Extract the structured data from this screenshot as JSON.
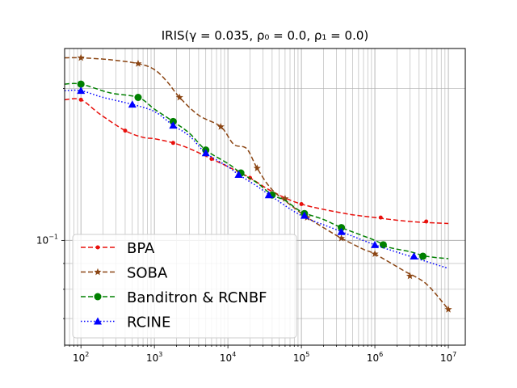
{
  "chart_data": {
    "type": "line",
    "title": "IRIS(γ = 0.035, ρ₀ = 0.0, ρ₁ = 0.0)",
    "xlabel": "",
    "ylabel": "",
    "xscale": "log",
    "yscale": "log",
    "xlim": [
      60,
      17000000
    ],
    "ylim": [
      0.062,
      0.24
    ],
    "grid": true,
    "legend_position": "lower-left",
    "x_ticks": [
      {
        "base": "10",
        "exp": "2",
        "value": 100
      },
      {
        "base": "10",
        "exp": "3",
        "value": 1000
      },
      {
        "base": "10",
        "exp": "4",
        "value": 10000
      },
      {
        "base": "10",
        "exp": "5",
        "value": 100000
      },
      {
        "base": "10",
        "exp": "6",
        "value": 1000000
      },
      {
        "base": "10",
        "exp": "7",
        "value": 10000000
      }
    ],
    "y_ticks": [
      {
        "base": "10",
        "exp": "−1",
        "value": 0.1
      }
    ],
    "series": [
      {
        "name": "BPA",
        "color": "#e8100c",
        "dash": "dashed",
        "marker": "dot",
        "x": [
          60,
          100,
          180,
          400,
          700,
          1000,
          1800,
          3000,
          6000,
          10000,
          20000,
          40000,
          100000,
          400000,
          1000000,
          3000000,
          10000000
        ],
        "y": [
          0.19,
          0.19,
          0.178,
          0.165,
          0.16,
          0.159,
          0.156,
          0.152,
          0.145,
          0.14,
          0.133,
          0.125,
          0.118,
          0.113,
          0.111,
          0.109,
          0.108
        ],
        "markers_x": [
          100,
          400,
          1800,
          6000,
          20000,
          100000,
          1200000,
          5000000
        ],
        "markers_y": [
          0.19,
          0.165,
          0.156,
          0.145,
          0.133,
          0.118,
          0.111,
          0.109
        ]
      },
      {
        "name": "SOBA",
        "color": "#8b4513",
        "dash": "dashed",
        "marker": "star",
        "x": [
          60,
          100,
          250,
          600,
          1000,
          1500,
          2200,
          4000,
          8000,
          12000,
          18000,
          25000,
          40000,
          80000,
          120000,
          200000,
          350000,
          700000,
          1000000,
          2500000,
          5000000,
          10000000
        ],
        "y": [
          0.23,
          0.23,
          0.228,
          0.224,
          0.218,
          0.206,
          0.192,
          0.177,
          0.168,
          0.155,
          0.152,
          0.139,
          0.126,
          0.116,
          0.111,
          0.106,
          0.101,
          0.096,
          0.094,
          0.087,
          0.082,
          0.073
        ],
        "markers_x": [
          100,
          600,
          2200,
          8000,
          25000,
          60000,
          120000,
          350000,
          1000000,
          3000000,
          10000000
        ],
        "markers_y": [
          0.23,
          0.224,
          0.192,
          0.168,
          0.139,
          0.121,
          0.111,
          0.101,
          0.094,
          0.085,
          0.073
        ]
      },
      {
        "name": "Banditron & RCNBF",
        "color": "#008000",
        "dash": "dashed",
        "marker": "circle",
        "x": [
          60,
          100,
          250,
          600,
          1000,
          1800,
          3000,
          5000,
          10000,
          15000,
          25000,
          40000,
          60000,
          100000,
          200000,
          350000,
          1000000,
          1500000,
          3000000,
          5000000,
          10000000
        ],
        "y": [
          0.204,
          0.204,
          0.196,
          0.192,
          0.182,
          0.172,
          0.163,
          0.151,
          0.142,
          0.136,
          0.13,
          0.123,
          0.12,
          0.114,
          0.11,
          0.106,
          0.1,
          0.097,
          0.095,
          0.093,
          0.092
        ],
        "markers_x": [
          100,
          600,
          1800,
          5000,
          15000,
          40000,
          110000,
          350000,
          1300000,
          4500000
        ],
        "markers_y": [
          0.204,
          0.192,
          0.172,
          0.151,
          0.136,
          0.123,
          0.113,
          0.106,
          0.098,
          0.093
        ]
      },
      {
        "name": "RCINE",
        "color": "#0000ff",
        "dash": "dotted",
        "marker": "triangle",
        "x": [
          60,
          100,
          200,
          500,
          1000,
          1800,
          3000,
          5000,
          10000,
          14000,
          25000,
          40000,
          100000,
          300000,
          1000000,
          3000000,
          10000000
        ],
        "y": [
          0.198,
          0.198,
          0.192,
          0.186,
          0.18,
          0.169,
          0.161,
          0.149,
          0.14,
          0.135,
          0.128,
          0.122,
          0.112,
          0.105,
          0.098,
          0.093,
          0.088
        ],
        "markers_x": [
          100,
          500,
          1800,
          5000,
          14000,
          36000,
          110000,
          350000,
          1000000,
          3400000
        ],
        "markers_y": [
          0.198,
          0.186,
          0.169,
          0.149,
          0.135,
          0.123,
          0.112,
          0.104,
          0.098,
          0.093
        ]
      }
    ]
  }
}
